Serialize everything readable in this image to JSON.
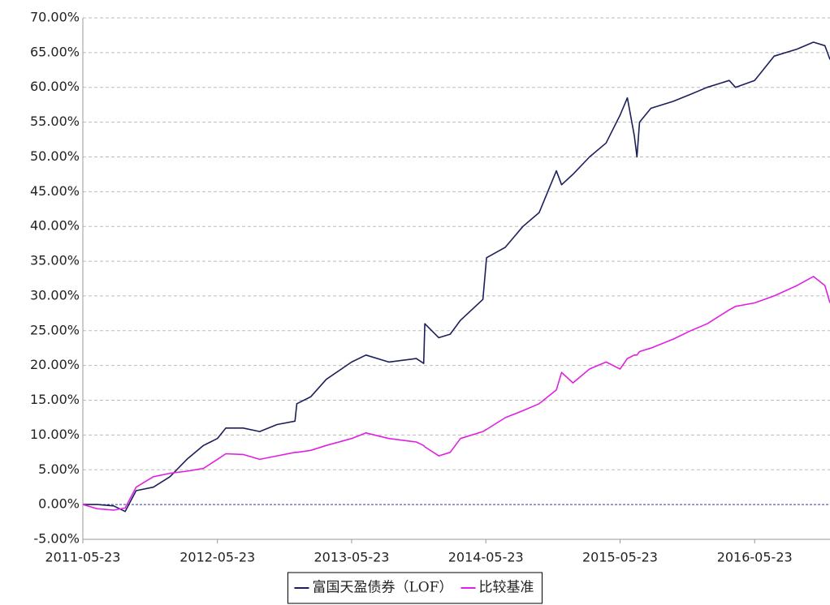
{
  "chart_data": {
    "type": "line",
    "x": [
      "2011-05-23",
      "2011-07-01",
      "2011-08-15",
      "2011-09-15",
      "2011-10-15",
      "2011-12-01",
      "2012-01-15",
      "2012-03-01",
      "2012-04-15",
      "2012-05-23",
      "2012-06-15",
      "2012-08-01",
      "2012-09-15",
      "2012-11-01",
      "2012-12-20",
      "2012-12-25",
      "2013-02-01",
      "2013-03-15",
      "2013-05-23",
      "2013-07-01",
      "2013-09-01",
      "2013-11-15",
      "2013-12-05",
      "2013-12-08",
      "2014-01-15",
      "2014-02-15",
      "2014-03-15",
      "2014-05-15",
      "2014-05-25",
      "2014-07-15",
      "2014-09-01",
      "2014-10-15",
      "2014-12-01",
      "2014-12-15",
      "2015-01-15",
      "2015-03-01",
      "2015-04-15",
      "2015-05-23",
      "2015-06-12",
      "2015-07-01",
      "2015-07-08",
      "2015-07-15",
      "2015-08-15",
      "2015-10-15",
      "2015-12-01",
      "2016-01-15",
      "2016-03-15",
      "2016-04-01",
      "2016-05-23",
      "2016-07-15",
      "2016-09-15",
      "2016-10-30",
      "2016-11-30",
      "2016-12-14"
    ],
    "series": [
      {
        "name": "富国天盈债券（LOF）",
        "color": "#1c1f5c",
        "values": [
          0,
          0,
          -0.2,
          -1,
          2,
          2.5,
          4,
          6.5,
          8.5,
          9.5,
          11,
          11,
          10.5,
          11.5,
          12,
          14.5,
          15.5,
          18,
          20.5,
          21.5,
          20.5,
          21,
          20.3,
          26,
          24,
          24.5,
          26.5,
          29.5,
          35.5,
          37,
          40,
          42,
          48,
          46,
          47.5,
          50,
          52,
          56,
          58.5,
          53,
          50,
          55,
          57,
          58,
          59,
          60,
          61,
          60,
          61,
          64.5,
          65.5,
          66.5,
          66,
          64
        ]
      },
      {
        "name": "比较基准",
        "color": "#e020e0",
        "values": [
          0,
          -0.6,
          -0.8,
          -0.5,
          2.5,
          4,
          4.5,
          4.8,
          5.2,
          6.5,
          7.3,
          7.2,
          6.5,
          7,
          7.5,
          7.5,
          7.8,
          8.5,
          9.5,
          10.3,
          9.5,
          9,
          8.5,
          8.3,
          7,
          7.5,
          9.5,
          10.5,
          10.8,
          12.5,
          13.5,
          14.5,
          16.5,
          19,
          17.5,
          19.5,
          20.5,
          19.5,
          21,
          21.5,
          21.5,
          22,
          22.5,
          23.8,
          25,
          26,
          28,
          28.5,
          29,
          30,
          31.5,
          32.8,
          31.5,
          29
        ]
      }
    ],
    "xlim": [
      "2011-05-23",
      "2016-12-14"
    ],
    "xticks": [
      "2011-05-23",
      "2012-05-23",
      "2013-05-23",
      "2014-05-23",
      "2015-05-23",
      "2016-05-23"
    ],
    "ylim": [
      -5,
      70
    ],
    "yticks": [
      {
        "value": -5,
        "label": "-5.00%"
      },
      {
        "value": 0,
        "label": "0.00%"
      },
      {
        "value": 5,
        "label": "5.00%"
      },
      {
        "value": 10,
        "label": "10.00%"
      },
      {
        "value": 15,
        "label": "15.00%"
      },
      {
        "value": 20,
        "label": "20.00%"
      },
      {
        "value": 25,
        "label": "25.00%"
      },
      {
        "value": 30,
        "label": "30.00%"
      },
      {
        "value": 35,
        "label": "35.00%"
      },
      {
        "value": 40,
        "label": "40.00%"
      },
      {
        "value": 45,
        "label": "45.00%"
      },
      {
        "value": 50,
        "label": "50.00%"
      },
      {
        "value": 55,
        "label": "55.00%"
      },
      {
        "value": 60,
        "label": "60.00%"
      },
      {
        "value": 65,
        "label": "65.00%"
      },
      {
        "value": 70,
        "label": "70.00%"
      }
    ],
    "grid": true,
    "legend": "bottom"
  }
}
